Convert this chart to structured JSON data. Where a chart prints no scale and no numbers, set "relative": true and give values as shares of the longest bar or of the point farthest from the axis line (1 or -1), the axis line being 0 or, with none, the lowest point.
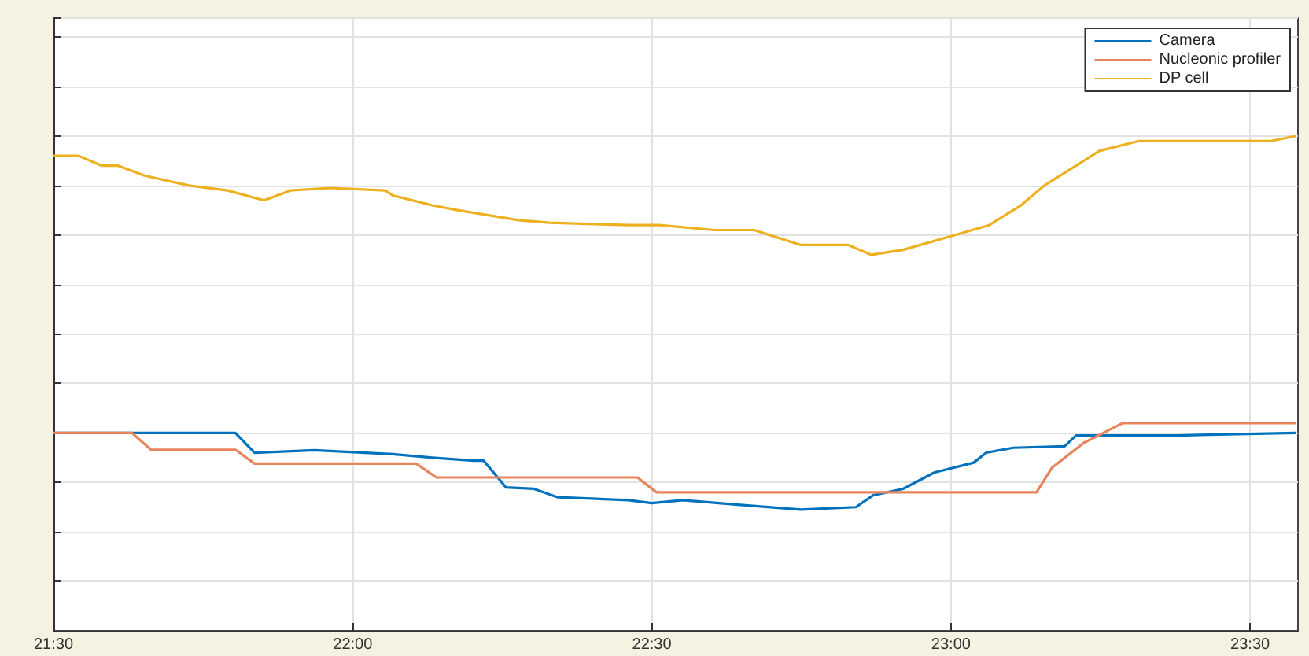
{
  "chart_data": {
    "type": "line",
    "relative": true,
    "grid": true,
    "legend": "top right",
    "tick_labels": "x",
    "marker": "none",
    "line_style": "solid",
    "xlim": [
      21.5,
      23.58
    ],
    "xticks": [
      {
        "value": 21.5,
        "label": "21:30"
      },
      {
        "value": 22,
        "label": "22:00"
      },
      {
        "value": 22.5,
        "label": "22:30"
      },
      {
        "value": 23,
        "label": "23:00"
      },
      {
        "value": 23.5,
        "label": "23:30"
      }
    ],
    "series": [
      {
        "name": "Camera",
        "color": "#0072bd",
        "x": [
          21.5,
          21.804,
          21.836,
          21.936,
          22.067,
          22.133,
          22.203,
          22.219,
          22.256,
          22.303,
          22.343,
          22.461,
          22.5,
          22.552,
          22.644,
          22.749,
          22.841,
          22.87,
          22.92,
          22.972,
          23.038,
          23.059,
          23.104,
          23.19,
          23.209,
          23.379,
          23.576
        ],
        "values": [
          0.4,
          0.4,
          0.36,
          0.365,
          0.357,
          0.35,
          0.344,
          0.344,
          0.29,
          0.287,
          0.27,
          0.264,
          0.258,
          0.264,
          0.255,
          0.245,
          0.25,
          0.274,
          0.287,
          0.32,
          0.34,
          0.36,
          0.37,
          0.373,
          0.395,
          0.395,
          0.4
        ]
      },
      {
        "name": "Nucleonic profiler",
        "color": "#e8845c",
        "x": [
          21.5,
          21.631,
          21.663,
          21.804,
          21.836,
          22.106,
          22.14,
          22.476,
          22.508,
          23.143,
          23.169,
          23.222,
          23.287,
          23.576
        ],
        "values": [
          0.4,
          0.4,
          0.366,
          0.366,
          0.338,
          0.338,
          0.31,
          0.31,
          0.28,
          0.28,
          0.33,
          0.38,
          0.42,
          0.42
        ]
      },
      {
        "name": "DP cell",
        "color": "#edb120",
        "x": [
          21.5,
          21.542,
          21.581,
          21.608,
          21.652,
          21.726,
          21.791,
          21.852,
          21.896,
          21.962,
          22.054,
          22.067,
          22.133,
          22.177,
          22.277,
          22.329,
          22.461,
          22.513,
          22.605,
          22.671,
          22.749,
          22.828,
          22.867,
          22.92,
          23.007,
          23.064,
          23.117,
          23.156,
          23.209,
          23.248,
          23.314,
          23.406,
          23.535,
          23.576
        ],
        "values": [
          0.96,
          0.96,
          0.94,
          0.94,
          0.92,
          0.9,
          0.89,
          0.87,
          0.89,
          0.895,
          0.89,
          0.88,
          0.86,
          0.85,
          0.83,
          0.825,
          0.82,
          0.82,
          0.81,
          0.81,
          0.78,
          0.78,
          0.76,
          0.77,
          0.8,
          0.82,
          0.86,
          0.9,
          0.94,
          0.97,
          0.99,
          0.99,
          0.99,
          1.0
        ]
      }
    ]
  }
}
